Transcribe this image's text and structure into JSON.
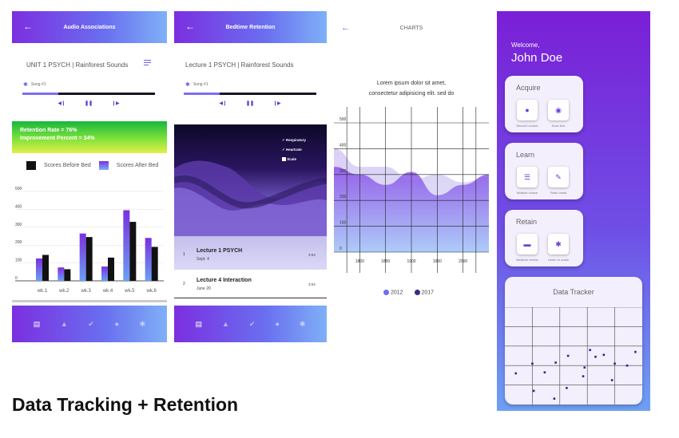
{
  "screen1": {
    "header_title": "Audio Associations",
    "subtitle": "UNIT 1 PSYCH  |  Rainforest Sounds",
    "song": "Song #1",
    "progress": 0.27,
    "retention_rate": "Retention Rate = 76%",
    "improvement": "Improvement Percent = 34%",
    "legend_before": "Scores Before Bed",
    "legend_after": "Scores After Bed"
  },
  "screen2": {
    "header_title": "Bedtime Retention",
    "subtitle": "Lecture 1 PSYCH  |  Rainforest Sounds",
    "song": "Song #1",
    "progress": 0.27,
    "legend_items": [
      "Respiratory",
      "Heartrate",
      "Scale"
    ],
    "lectures": [
      {
        "num": "1",
        "title": "Lecture 1 PSYCH",
        "date": "Sept. 4",
        "time": "3:04"
      },
      {
        "num": "2",
        "title": "Lecture 4 Interaction",
        "date": "June 20",
        "time": "3:04"
      }
    ]
  },
  "screen3": {
    "header_title": "CHARTS",
    "text_line1": "Lorem ipsum dolor sit amet,",
    "text_line2": "consectetur adipisicing elit. sed do",
    "legend": [
      "2012",
      "2017"
    ]
  },
  "screen4": {
    "welcome": "Welcome,",
    "name": "John Doe",
    "acquire": {
      "title": "Acquire",
      "items": [
        "Record Lecture",
        "Scan text"
      ]
    },
    "learn": {
      "title": "Learn",
      "items": [
        "Multiple choice",
        "Flash cards"
      ]
    },
    "retain": {
      "title": "Retain",
      "items": [
        "Bedtime review",
        "Listen to audio"
      ]
    },
    "tracker_title": "Data Tracker"
  },
  "footer_title": "Data Tracking + Retention",
  "chart_data": [
    {
      "type": "bar",
      "categories": [
        "wk.1",
        "wk.2",
        "wk.3",
        "wk.4",
        "wk.5",
        "wk.6"
      ],
      "series": [
        {
          "name": "Scores Before Bed",
          "values": [
            145,
            65,
            245,
            130,
            330,
            190
          ]
        },
        {
          "name": "Scores After Bed",
          "values": [
            125,
            75,
            265,
            80,
            395,
            240
          ]
        }
      ],
      "ylim": [
        0,
        500
      ],
      "yticks": [
        "0",
        "100",
        "200",
        "300",
        "400",
        "500"
      ]
    },
    {
      "type": "area",
      "x": [
        1750,
        1800,
        1850,
        1900,
        1950,
        2000,
        2050
      ],
      "xticks": [
        "1800",
        "1850",
        "1900",
        "1950",
        "2000"
      ],
      "yticks": [
        "0",
        "100",
        "200",
        "300",
        "400",
        "500"
      ],
      "ylim": [
        0,
        500
      ],
      "series": [
        {
          "name": "2012",
          "values": [
            400,
            330,
            330,
            280,
            300,
            270,
            290
          ]
        },
        {
          "name": "2017",
          "values": [
            330,
            300,
            260,
            310,
            220,
            260,
            300
          ]
        }
      ]
    },
    {
      "type": "scatter",
      "points": [
        [
          0.08,
          0.68
        ],
        [
          0.2,
          0.58
        ],
        [
          0.29,
          0.67
        ],
        [
          0.37,
          0.57
        ],
        [
          0.45,
          0.83
        ],
        [
          0.46,
          0.5
        ],
        [
          0.57,
          0.71
        ],
        [
          0.58,
          0.62
        ],
        [
          0.62,
          0.44
        ],
        [
          0.66,
          0.51
        ],
        [
          0.78,
          0.75
        ],
        [
          0.8,
          0.58
        ],
        [
          0.89,
          0.6
        ],
        [
          0.95,
          0.46
        ],
        [
          0.21,
          0.86
        ],
        [
          0.36,
          0.94
        ],
        [
          0.72,
          0.49
        ]
      ]
    }
  ]
}
